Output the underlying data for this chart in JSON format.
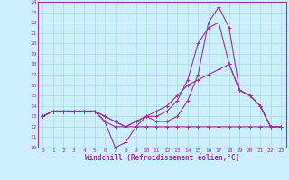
{
  "xlabel": "Windchill (Refroidissement éolien,°C)",
  "background_color": "#cceeff",
  "grid_color": "#aaddcc",
  "line_color": "#993399",
  "border_color": "#993399",
  "xlim": [
    -0.5,
    23.5
  ],
  "ylim": [
    10,
    24
  ],
  "yticks": [
    10,
    11,
    12,
    13,
    14,
    15,
    16,
    17,
    18,
    19,
    20,
    21,
    22,
    23,
    24
  ],
  "xticks": [
    0,
    1,
    2,
    3,
    4,
    5,
    6,
    7,
    8,
    9,
    10,
    11,
    12,
    13,
    14,
    15,
    16,
    17,
    18,
    19,
    20,
    21,
    22,
    23
  ],
  "lines": [
    [
      13.0,
      13.5,
      13.5,
      13.5,
      13.5,
      13.5,
      12.5,
      10.0,
      10.5,
      12.0,
      13.0,
      12.5,
      12.5,
      13.0,
      14.5,
      17.0,
      22.0,
      23.5,
      21.5,
      15.5,
      15.0,
      14.0,
      12.0,
      12.0
    ],
    [
      13.0,
      13.5,
      13.5,
      13.5,
      13.5,
      13.5,
      12.5,
      12.0,
      12.0,
      12.0,
      12.0,
      12.0,
      12.0,
      12.0,
      12.0,
      12.0,
      12.0,
      12.0,
      12.0,
      12.0,
      12.0,
      12.0,
      12.0,
      12.0
    ],
    [
      13.0,
      13.5,
      13.5,
      13.5,
      13.5,
      13.5,
      13.0,
      12.5,
      12.0,
      12.5,
      13.0,
      13.0,
      13.5,
      14.5,
      16.5,
      20.0,
      21.5,
      22.0,
      18.0,
      15.5,
      15.0,
      14.0,
      12.0,
      12.0
    ],
    [
      13.0,
      13.5,
      13.5,
      13.5,
      13.5,
      13.5,
      13.0,
      12.5,
      12.0,
      12.5,
      13.0,
      13.5,
      14.0,
      15.0,
      16.0,
      16.5,
      17.0,
      17.5,
      18.0,
      15.5,
      15.0,
      14.0,
      12.0,
      12.0
    ]
  ],
  "marker": "+",
  "markersize": 3,
  "linewidth": 0.8,
  "tick_fontsize": 4.5,
  "label_fontsize": 5.5
}
